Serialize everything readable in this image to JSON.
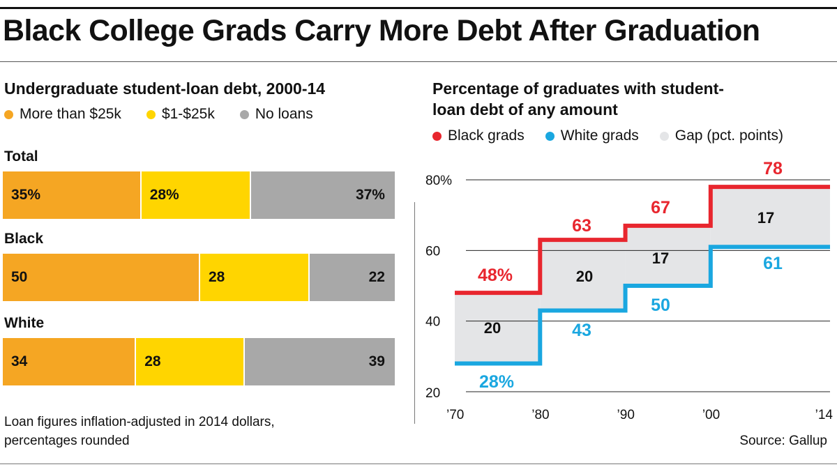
{
  "headline": "Black College Grads Carry More Debt After Graduation",
  "source": "Source: Gallup",
  "note": {
    "line1": "Loan figures inflation-adjusted in 2014 dollars,",
    "line2": "percentages rounded"
  },
  "colors": {
    "orange": "#F5A623",
    "yellow": "#FFD500",
    "gray": "#A8A8A8",
    "black_line": "#E8262E",
    "white_line": "#1AA7E0",
    "gap_fill": "#E4E5E7"
  },
  "chart_data": [
    {
      "type": "bar",
      "title": "Undergraduate student-loan debt, 2000-14",
      "stacked": true,
      "orientation": "horizontal",
      "legend": [
        {
          "name": "More than $25k",
          "color": "#F5A623"
        },
        {
          "name": "$1-$25k",
          "color": "#FFD500"
        },
        {
          "name": "No loans",
          "color": "#A8A8A8"
        }
      ],
      "groups": [
        {
          "name": "Total",
          "values": [
            35,
            28,
            37
          ],
          "labels": [
            "35%",
            "28%",
            "37%"
          ]
        },
        {
          "name": "Black",
          "values": [
            50,
            28,
            22
          ],
          "labels": [
            "50",
            "28",
            "22"
          ]
        },
        {
          "name": "White",
          "values": [
            34,
            28,
            39
          ],
          "labels": [
            "34",
            "28",
            "39"
          ]
        }
      ]
    },
    {
      "type": "line",
      "step": true,
      "title_line1": "Percentage of graduates with student-",
      "title_line2": "loan debt of any amount",
      "legend": [
        {
          "name": "Black grads",
          "color": "#E8262E"
        },
        {
          "name": "White grads",
          "color": "#1AA7E0"
        },
        {
          "name": "Gap (pct. points)",
          "color": "#E4E5E7"
        }
      ],
      "x_ticks": [
        {
          "value": 1970,
          "label": "’70"
        },
        {
          "value": 1980,
          "label": "’80"
        },
        {
          "value": 1990,
          "label": "’90"
        },
        {
          "value": 2000,
          "label": "’00"
        },
        {
          "value": 2014,
          "label": "’14"
        }
      ],
      "y_ticks": [
        {
          "value": 20,
          "label": "20"
        },
        {
          "value": 40,
          "label": "40"
        },
        {
          "value": 60,
          "label": "60"
        },
        {
          "value": 80,
          "label": "80%"
        }
      ],
      "xlim": [
        1970,
        2014
      ],
      "ylim": [
        20,
        80
      ],
      "periods": [
        {
          "start": 1970,
          "end": 1980,
          "black": 48,
          "white": 28,
          "gap": 20,
          "black_label": "48%",
          "white_label": "28%",
          "gap_label": "20"
        },
        {
          "start": 1980,
          "end": 1990,
          "black": 63,
          "white": 43,
          "gap": 20,
          "black_label": "63",
          "white_label": "43",
          "gap_label": "20"
        },
        {
          "start": 1990,
          "end": 2000,
          "black": 67,
          "white": 50,
          "gap": 17,
          "black_label": "67",
          "white_label": "50",
          "gap_label": "17"
        },
        {
          "start": 2000,
          "end": 2014,
          "black": 78,
          "white": 61,
          "gap": 17,
          "black_label": "78",
          "white_label": "61",
          "gap_label": "17"
        }
      ]
    }
  ]
}
